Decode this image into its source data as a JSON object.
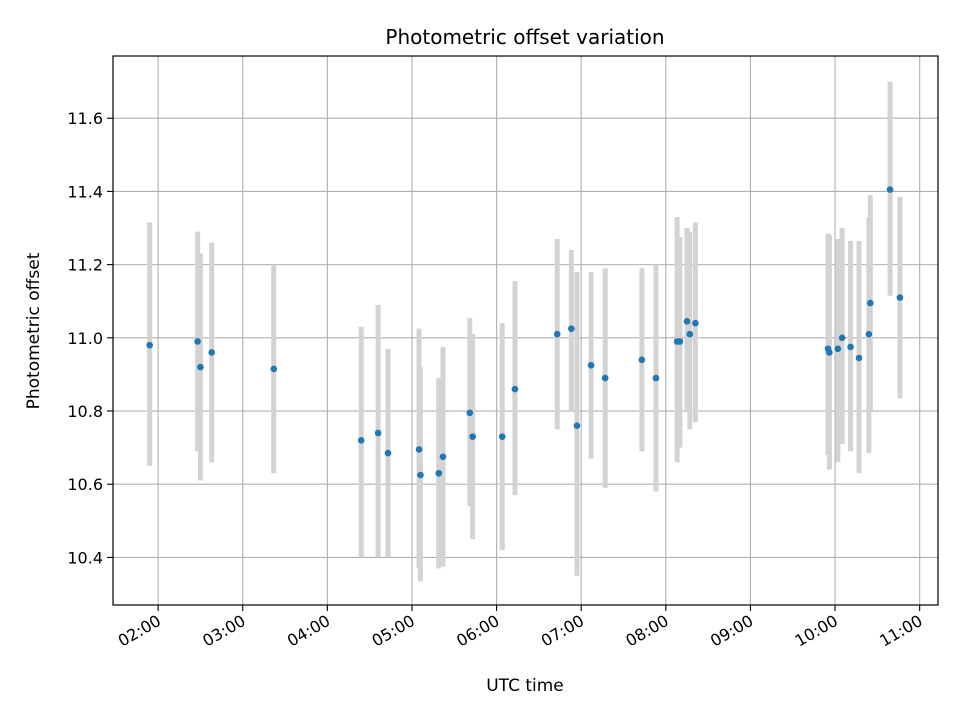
{
  "chart_data": {
    "type": "scatter",
    "title": "Photometric offset variation",
    "xlabel": "UTC time",
    "ylabel": "Photometric offset",
    "x_unit": "UTC hh:mm",
    "xlim": [
      "01:28",
      "11:13"
    ],
    "ylim": [
      10.27,
      11.77
    ],
    "grid": true,
    "legend": "none",
    "x_ticks": [
      "02:00",
      "03:00",
      "04:00",
      "05:00",
      "06:00",
      "07:00",
      "08:00",
      "09:00",
      "10:00",
      "11:00"
    ],
    "y_ticks": [
      "10.4",
      "10.6",
      "10.8",
      "11.0",
      "11.2",
      "11.4",
      "11.6"
    ],
    "colors": {
      "point": "#1f77b4",
      "errorbar": "#d3d3d3",
      "grid": "#b0b0b0"
    },
    "series": [
      {
        "x": [
          "01:54",
          "02:28",
          "02:30",
          "02:38",
          "03:22",
          "04:24",
          "04:36",
          "04:43",
          "05:05",
          "05:06",
          "05:19",
          "05:22",
          "05:41",
          "05:43",
          "06:04",
          "06:13",
          "06:43",
          "06:53",
          "06:57",
          "07:07",
          "07:17",
          "07:43",
          "07:53",
          "08:08",
          "08:10",
          "08:15",
          "08:17",
          "08:21",
          "09:55",
          "09:56",
          "10:02",
          "10:05",
          "10:11",
          "10:17",
          "10:24",
          "10:25",
          "10:39",
          "10:46"
        ],
        "y": [
          10.98,
          10.99,
          10.92,
          10.96,
          10.915,
          10.72,
          10.74,
          10.685,
          10.695,
          10.625,
          10.63,
          10.675,
          10.795,
          10.73,
          10.73,
          10.86,
          11.01,
          11.025,
          10.76,
          10.925,
          10.89,
          10.94,
          10.89,
          10.99,
          10.99,
          11.045,
          11.01,
          11.04,
          10.97,
          10.96,
          10.97,
          11.0,
          10.975,
          10.945,
          11.01,
          11.095,
          11.405,
          11.11
        ],
        "yerr_low": [
          10.65,
          10.69,
          10.61,
          10.66,
          10.63,
          10.4,
          10.4,
          10.4,
          10.37,
          10.335,
          10.37,
          10.375,
          10.54,
          10.45,
          10.42,
          10.57,
          10.75,
          10.8,
          10.35,
          10.67,
          10.59,
          10.69,
          10.58,
          10.66,
          10.7,
          10.8,
          10.75,
          10.77,
          10.68,
          10.64,
          10.66,
          10.71,
          10.69,
          10.63,
          10.685,
          10.8,
          11.115,
          10.835
        ],
        "yerr_high": [
          11.315,
          11.29,
          11.23,
          11.26,
          11.2,
          11.03,
          11.09,
          10.97,
          11.025,
          10.92,
          10.89,
          10.975,
          11.055,
          11.01,
          11.04,
          11.155,
          11.27,
          11.24,
          11.18,
          11.18,
          11.19,
          11.19,
          11.2,
          11.33,
          11.275,
          11.3,
          11.29,
          11.315,
          11.285,
          11.28,
          11.27,
          11.3,
          11.265,
          11.265,
          11.33,
          11.39,
          11.7,
          11.385
        ]
      }
    ]
  }
}
